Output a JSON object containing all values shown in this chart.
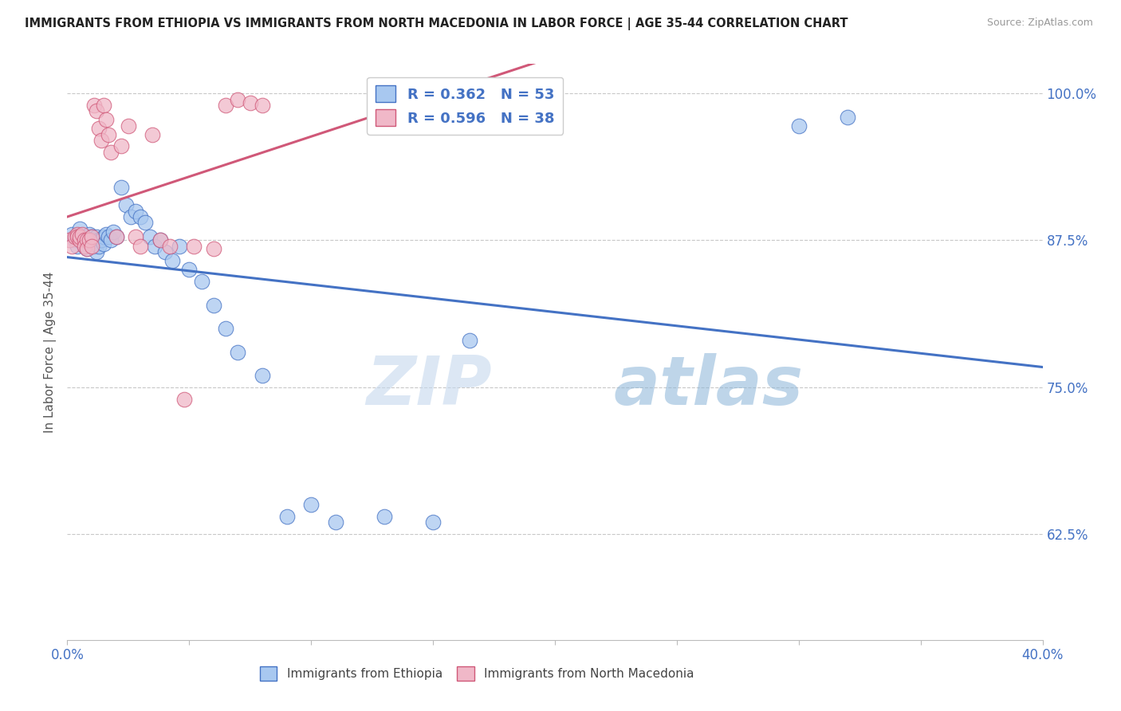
{
  "title": "IMMIGRANTS FROM ETHIOPIA VS IMMIGRANTS FROM NORTH MACEDONIA IN LABOR FORCE | AGE 35-44 CORRELATION CHART",
  "source": "Source: ZipAtlas.com",
  "ylabel_label": "In Labor Force | Age 35-44",
  "ytick_values": [
    1.0,
    0.875,
    0.75,
    0.625
  ],
  "ytick_labels": [
    "100.0%",
    "87.5%",
    "75.0%",
    "62.5%"
  ],
  "xtick_labels": [
    "0.0%",
    "40.0%"
  ],
  "xlim": [
    0.0,
    0.4
  ],
  "ylim": [
    0.535,
    1.025
  ],
  "legend_r1": "R = 0.362",
  "legend_n1": "N = 53",
  "legend_r2": "R = 0.596",
  "legend_n2": "N = 38",
  "color_ethiopia": "#a8c8f0",
  "color_macedonia": "#f0b8c8",
  "color_line_ethiopia": "#4472C4",
  "color_line_macedonia": "#d05878",
  "color_text_blue": "#4472C4",
  "watermark_zip": "ZIP",
  "watermark_atlas": "atlas",
  "ethiopia_x": [
    0.002,
    0.003,
    0.004,
    0.005,
    0.005,
    0.006,
    0.006,
    0.007,
    0.008,
    0.008,
    0.009,
    0.01,
    0.01,
    0.011,
    0.011,
    0.012,
    0.012,
    0.013,
    0.013,
    0.014,
    0.015,
    0.015,
    0.016,
    0.017,
    0.018,
    0.019,
    0.02,
    0.022,
    0.024,
    0.026,
    0.028,
    0.03,
    0.032,
    0.034,
    0.036,
    0.038,
    0.04,
    0.043,
    0.046,
    0.05,
    0.055,
    0.06,
    0.065,
    0.07,
    0.08,
    0.09,
    0.1,
    0.11,
    0.13,
    0.15,
    0.165,
    0.3,
    0.32
  ],
  "ethiopia_y": [
    0.88,
    0.875,
    0.87,
    0.885,
    0.878,
    0.875,
    0.873,
    0.87,
    0.878,
    0.868,
    0.88,
    0.878,
    0.872,
    0.87,
    0.875,
    0.878,
    0.865,
    0.875,
    0.87,
    0.875,
    0.878,
    0.872,
    0.88,
    0.878,
    0.875,
    0.882,
    0.878,
    0.92,
    0.905,
    0.895,
    0.9,
    0.895,
    0.89,
    0.878,
    0.87,
    0.875,
    0.865,
    0.858,
    0.87,
    0.85,
    0.84,
    0.82,
    0.8,
    0.78,
    0.76,
    0.64,
    0.65,
    0.635,
    0.64,
    0.635,
    0.79,
    0.972,
    0.98
  ],
  "macedonia_x": [
    0.001,
    0.002,
    0.003,
    0.004,
    0.004,
    0.005,
    0.005,
    0.006,
    0.007,
    0.007,
    0.008,
    0.008,
    0.009,
    0.01,
    0.01,
    0.011,
    0.012,
    0.013,
    0.014,
    0.015,
    0.016,
    0.017,
    0.018,
    0.02,
    0.022,
    0.025,
    0.028,
    0.03,
    0.035,
    0.038,
    0.042,
    0.048,
    0.052,
    0.06,
    0.065,
    0.07,
    0.075,
    0.08
  ],
  "macedonia_y": [
    0.875,
    0.87,
    0.878,
    0.88,
    0.878,
    0.875,
    0.878,
    0.88,
    0.875,
    0.87,
    0.875,
    0.868,
    0.875,
    0.878,
    0.87,
    0.99,
    0.985,
    0.97,
    0.96,
    0.99,
    0.978,
    0.965,
    0.95,
    0.878,
    0.955,
    0.972,
    0.878,
    0.87,
    0.965,
    0.875,
    0.87,
    0.74,
    0.87,
    0.868,
    0.99,
    0.995,
    0.992,
    0.99
  ]
}
